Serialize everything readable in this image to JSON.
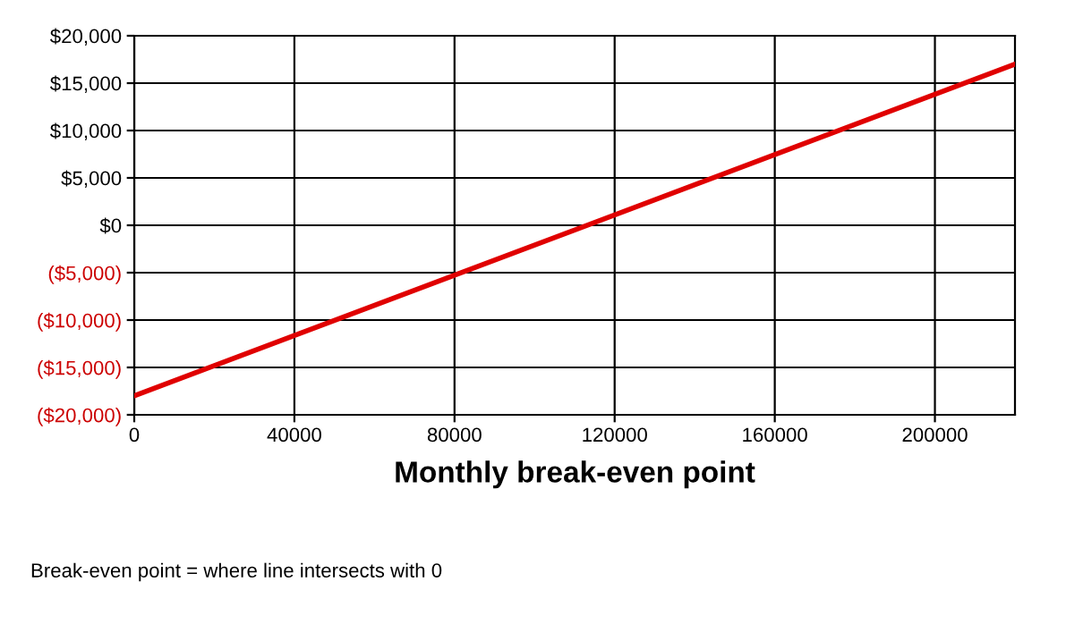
{
  "chart_data": {
    "type": "line",
    "xlabel": "Monthly break-even point",
    "x": [
      0,
      220000
    ],
    "series": [
      {
        "color": "#e00000",
        "values": [
          -18000,
          17000
        ]
      }
    ],
    "xlim": [
      0,
      220000
    ],
    "ylim": [
      -20000,
      20000
    ],
    "xticks": [
      0,
      40000,
      80000,
      120000,
      160000,
      200000
    ],
    "yticks": [
      {
        "value": -20000,
        "label": "($20,000)"
      },
      {
        "value": -15000,
        "label": "($15,000)"
      },
      {
        "value": -10000,
        "label": "($10,000)"
      },
      {
        "value": -5000,
        "label": "($5,000)"
      },
      {
        "value": 0,
        "label": "$0"
      },
      {
        "value": 5000,
        "label": "$5,000"
      },
      {
        "value": 10000,
        "label": "$10,000"
      },
      {
        "value": 15000,
        "label": "$15,000"
      },
      {
        "value": 20000,
        "label": "$20,000"
      }
    ],
    "grid": true,
    "marker": "none",
    "line_style": "solid",
    "annotations": [
      "Break-even point = where line intersects with 0"
    ]
  }
}
